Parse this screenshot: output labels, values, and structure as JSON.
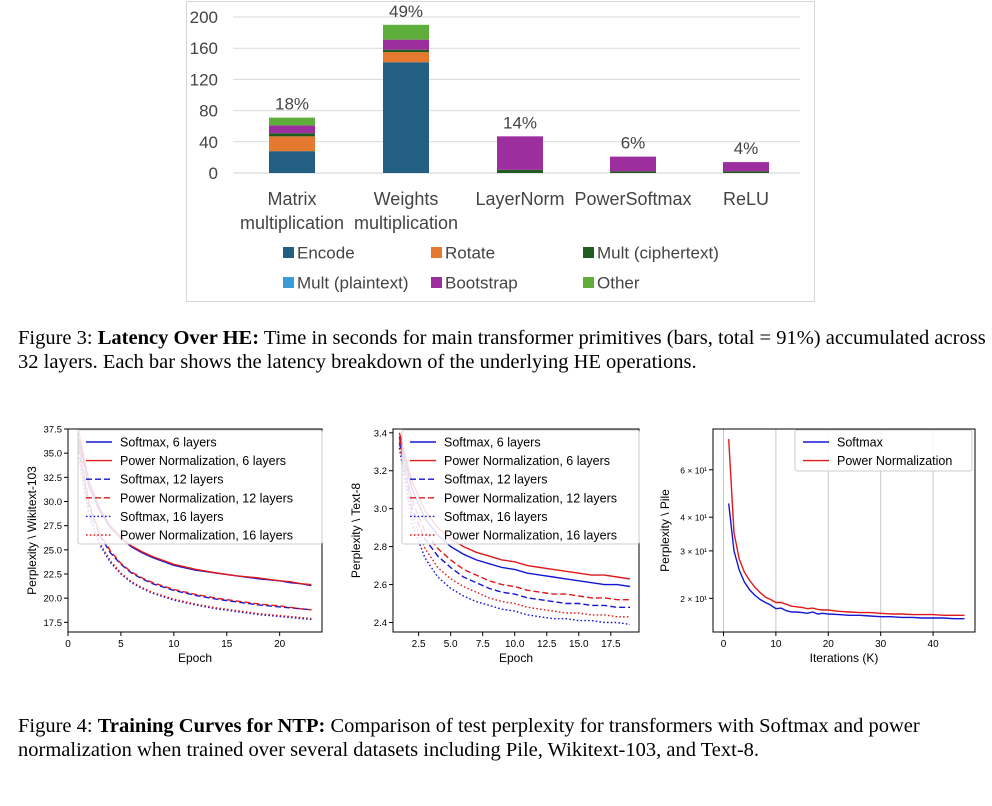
{
  "figure3": {
    "caption_label": "Figure 3:",
    "caption_bold": "Latency Over HE:",
    "caption_text": "Time in seconds for main transformer primitives (bars, total = 91%) accumulated across 32 layers. Each bar shows the latency breakdown of the underlying HE operations."
  },
  "figure4": {
    "caption_label": "Figure 4:",
    "caption_bold": "Training Curves for NTP:",
    "caption_text": "Comparison of test perplexity for transformers with Softmax and power normalization when trained over several datasets including Pile, Wikitext-103, and Text-8."
  },
  "colors": {
    "encode": "#235f83",
    "rotate": "#e5792f",
    "mult_ciphertext": "#1f5e20",
    "mult_plaintext": "#3b9ad8",
    "bootstrap": "#9c2f9d",
    "other": "#5fae3b",
    "softmax": "#1515d6",
    "power": "#e0191b",
    "grid": "#d9d9d9"
  },
  "chart_data": [
    {
      "type": "bar",
      "stacked": true,
      "title": "",
      "categories": [
        [
          "Matrix",
          "multiplication"
        ],
        [
          "Weights",
          "multiplication"
        ],
        [
          "LayerNorm"
        ],
        [
          "PowerSoftmax"
        ],
        [
          "ReLU"
        ]
      ],
      "bar_labels": [
        "18%",
        "49%",
        "14%",
        "6%",
        "4%"
      ],
      "ylim": [
        0,
        200
      ],
      "yticks": [
        0,
        40,
        80,
        120,
        160,
        200
      ],
      "series": [
        {
          "name": "Encode",
          "color_key": "encode",
          "values": [
            28,
            142,
            0,
            0,
            0
          ]
        },
        {
          "name": "Rotate",
          "color_key": "rotate",
          "values": [
            19,
            13,
            0,
            0,
            0
          ]
        },
        {
          "name": "Mult (ciphertext)",
          "color_key": "mult_ciphertext",
          "values": [
            4,
            3,
            4,
            2,
            2
          ]
        },
        {
          "name": "Mult (plaintext)",
          "color_key": "mult_plaintext",
          "values": [
            0,
            0,
            0,
            0,
            0
          ]
        },
        {
          "name": "Bootstrap",
          "color_key": "bootstrap",
          "values": [
            10,
            13,
            43,
            19,
            12
          ]
        },
        {
          "name": "Other",
          "color_key": "other",
          "values": [
            10,
            19,
            0,
            0,
            0
          ]
        }
      ],
      "legend_order": [
        "Encode",
        "Rotate",
        "Mult (ciphertext)",
        "Mult (plaintext)",
        "Bootstrap",
        "Other"
      ]
    },
    {
      "type": "line",
      "xlabel": "Epoch",
      "ylabel": "Perplexity \\ Wikitext-103",
      "xlim": [
        0,
        24
      ],
      "ylim": [
        16.5,
        37.5
      ],
      "xticks": [
        0,
        5,
        10,
        15,
        20
      ],
      "yticks": [
        17.5,
        20.0,
        22.5,
        25.0,
        27.5,
        30.0,
        32.5,
        35.0,
        37.5
      ],
      "ytick_labels": [
        "17.5",
        "20.0",
        "22.5",
        "25.0",
        "27.5",
        "30.0",
        "32.5",
        "35.0",
        "37.5"
      ],
      "legend_position": "top-right",
      "series": [
        {
          "name": "Softmax, 6 layers",
          "color_key": "softmax",
          "style": "solid",
          "x": [
            1,
            2,
            3,
            4,
            5,
            6,
            7,
            8,
            10,
            12,
            14,
            16,
            18,
            20,
            21,
            22,
            23
          ],
          "y": [
            36.5,
            31.5,
            29.0,
            27.3,
            26.2,
            25.3,
            24.7,
            24.2,
            23.4,
            22.9,
            22.6,
            22.3,
            22.0,
            21.8,
            21.6,
            21.5,
            21.3
          ]
        },
        {
          "name": "Power Normalization, 6 layers",
          "color_key": "power",
          "style": "solid",
          "x": [
            1,
            2,
            3,
            4,
            5,
            6,
            7,
            8,
            10,
            12,
            14,
            16,
            18,
            20,
            21,
            22,
            23
          ],
          "y": [
            37.2,
            32.0,
            29.3,
            27.5,
            26.3,
            25.4,
            24.8,
            24.3,
            23.5,
            23.0,
            22.6,
            22.3,
            22.1,
            21.8,
            21.7,
            21.5,
            21.4
          ]
        },
        {
          "name": "Softmax, 12 layers",
          "color_key": "softmax",
          "style": "dashed",
          "x": [
            1,
            2,
            3,
            4,
            5,
            6,
            7,
            8,
            10,
            12,
            14,
            16,
            18,
            20,
            22,
            23
          ],
          "y": [
            35.5,
            29.5,
            26.5,
            24.7,
            23.5,
            22.6,
            22.0,
            21.5,
            20.8,
            20.3,
            19.9,
            19.6,
            19.3,
            19.1,
            18.9,
            18.8
          ]
        },
        {
          "name": "Power Normalization, 12 layers",
          "color_key": "power",
          "style": "dashed",
          "x": [
            1,
            2,
            3,
            4,
            5,
            6,
            7,
            8,
            10,
            12,
            14,
            16,
            18,
            20,
            22,
            23
          ],
          "y": [
            36.0,
            29.8,
            26.7,
            24.9,
            23.6,
            22.7,
            22.1,
            21.6,
            20.9,
            20.4,
            20.0,
            19.7,
            19.4,
            19.2,
            18.9,
            18.8
          ]
        },
        {
          "name": "Softmax, 16 layers",
          "color_key": "softmax",
          "style": "dotted",
          "x": [
            1,
            2,
            3,
            4,
            5,
            6,
            7,
            8,
            10,
            12,
            14,
            16,
            18,
            20,
            22,
            23
          ],
          "y": [
            34.5,
            28.5,
            25.5,
            23.7,
            22.5,
            21.6,
            21.0,
            20.5,
            19.8,
            19.3,
            18.9,
            18.6,
            18.3,
            18.1,
            17.9,
            17.8
          ]
        },
        {
          "name": "Power Normalization, 16 layers",
          "color_key": "power",
          "style": "dotted",
          "x": [
            1,
            2,
            3,
            4,
            5,
            6,
            7,
            8,
            10,
            12,
            14,
            16,
            18,
            20,
            22,
            23
          ],
          "y": [
            35.0,
            28.8,
            25.7,
            23.9,
            22.6,
            21.7,
            21.1,
            20.6,
            19.9,
            19.4,
            19.0,
            18.7,
            18.4,
            18.2,
            18.0,
            17.9
          ]
        }
      ]
    },
    {
      "type": "line",
      "xlabel": "Epoch",
      "ylabel": "Perplexity \\ Text-8",
      "xlim": [
        0.5,
        19.7
      ],
      "ylim": [
        2.35,
        3.42
      ],
      "xticks": [
        2.5,
        5.0,
        7.5,
        10.0,
        12.5,
        15.0,
        17.5
      ],
      "xtick_labels": [
        "2.5",
        "5.0",
        "7.5",
        "10.0",
        "12.5",
        "15.0",
        "17.5"
      ],
      "yticks": [
        2.4,
        2.6,
        2.8,
        3.0,
        3.2,
        3.4
      ],
      "ytick_labels": [
        "2.4",
        "2.6",
        "2.8",
        "3.0",
        "3.2",
        "3.4"
      ],
      "legend_position": "top-right",
      "series": [
        {
          "name": "Softmax, 6 layers",
          "color_key": "softmax",
          "style": "solid",
          "x": [
            1,
            2,
            3,
            4,
            5,
            6,
            7,
            8,
            9,
            10,
            11,
            12,
            13,
            14,
            15,
            16,
            17,
            18,
            19
          ],
          "y": [
            3.38,
            3.1,
            2.95,
            2.86,
            2.8,
            2.76,
            2.73,
            2.71,
            2.69,
            2.68,
            2.66,
            2.65,
            2.64,
            2.63,
            2.62,
            2.61,
            2.6,
            2.6,
            2.59
          ]
        },
        {
          "name": "Power Normalization, 6 layers",
          "color_key": "power",
          "style": "solid",
          "x": [
            1,
            2,
            3,
            4,
            5,
            6,
            7,
            8,
            9,
            10,
            11,
            12,
            13,
            14,
            15,
            16,
            17,
            18,
            19
          ],
          "y": [
            3.4,
            3.14,
            2.99,
            2.9,
            2.84,
            2.8,
            2.77,
            2.75,
            2.73,
            2.72,
            2.7,
            2.69,
            2.68,
            2.67,
            2.66,
            2.65,
            2.65,
            2.64,
            2.63
          ]
        },
        {
          "name": "Softmax, 12 layers",
          "color_key": "softmax",
          "style": "dashed",
          "x": [
            1,
            2,
            3,
            4,
            5,
            6,
            7,
            8,
            9,
            10,
            11,
            12,
            13,
            14,
            15,
            16,
            17,
            18,
            19
          ],
          "y": [
            3.35,
            3.0,
            2.84,
            2.75,
            2.69,
            2.64,
            2.61,
            2.58,
            2.56,
            2.55,
            2.53,
            2.52,
            2.51,
            2.5,
            2.5,
            2.49,
            2.49,
            2.48,
            2.48
          ]
        },
        {
          "name": "Power Normalization, 12 layers",
          "color_key": "power",
          "style": "dashed",
          "x": [
            1,
            2,
            3,
            4,
            5,
            6,
            7,
            8,
            9,
            10,
            11,
            12,
            13,
            14,
            15,
            16,
            17,
            18,
            19
          ],
          "y": [
            3.37,
            3.04,
            2.88,
            2.79,
            2.73,
            2.68,
            2.65,
            2.62,
            2.6,
            2.59,
            2.57,
            2.56,
            2.55,
            2.55,
            2.54,
            2.53,
            2.53,
            2.52,
            2.52
          ]
        },
        {
          "name": "Softmax, 16 layers",
          "color_key": "softmax",
          "style": "dotted",
          "x": [
            1,
            2,
            3,
            4,
            5,
            6,
            7,
            8,
            9,
            10,
            11,
            12,
            13,
            14,
            15,
            16,
            17,
            18,
            19
          ],
          "y": [
            3.32,
            2.92,
            2.74,
            2.64,
            2.58,
            2.54,
            2.51,
            2.49,
            2.47,
            2.46,
            2.44,
            2.43,
            2.42,
            2.42,
            2.41,
            2.41,
            2.4,
            2.4,
            2.39
          ]
        },
        {
          "name": "Power Normalization, 16 layers",
          "color_key": "power",
          "style": "dotted",
          "x": [
            1,
            2,
            3,
            4,
            5,
            6,
            7,
            8,
            9,
            10,
            11,
            12,
            13,
            14,
            15,
            16,
            17,
            18,
            19
          ],
          "y": [
            3.34,
            2.96,
            2.79,
            2.69,
            2.63,
            2.59,
            2.56,
            2.53,
            2.51,
            2.5,
            2.48,
            2.47,
            2.46,
            2.45,
            2.45,
            2.44,
            2.44,
            2.43,
            2.43
          ]
        }
      ]
    },
    {
      "type": "line",
      "yscale": "log",
      "xlabel": "Iterations (K)",
      "ylabel": "Perplexity \\ Pile",
      "xlim": [
        -2,
        48
      ],
      "ylim": [
        15,
        85
      ],
      "xticks": [
        0,
        10,
        20,
        30,
        40
      ],
      "yticks": [
        20,
        30,
        40,
        60
      ],
      "ytick_labels": [
        "2 × 10¹",
        "3 × 10¹",
        "4 × 10¹",
        "6 × 10¹"
      ],
      "grid": true,
      "legend_position": "top-right",
      "series": [
        {
          "name": "Softmax",
          "color_key": "softmax",
          "style": "solid",
          "x": [
            1,
            2,
            3,
            4,
            5,
            6,
            7,
            8,
            9,
            10,
            11,
            12,
            13,
            14,
            15,
            16,
            17,
            18,
            19,
            20,
            22,
            24,
            26,
            28,
            30,
            32,
            34,
            36,
            38,
            40,
            42,
            44,
            46
          ],
          "y": [
            45,
            30,
            25.5,
            23,
            21.5,
            20.5,
            19.8,
            19.3,
            18.9,
            18.3,
            18.4,
            18.0,
            17.8,
            17.8,
            17.7,
            17.6,
            17.8,
            17.5,
            17.6,
            17.5,
            17.4,
            17.3,
            17.3,
            17.2,
            17.1,
            17.1,
            17.0,
            17.0,
            16.9,
            16.9,
            16.9,
            16.8,
            16.8
          ]
        },
        {
          "name": "Power Normalization",
          "color_key": "power",
          "style": "solid",
          "x": [
            1,
            2,
            3,
            4,
            5,
            6,
            7,
            8,
            9,
            10,
            11,
            12,
            13,
            14,
            15,
            16,
            17,
            18,
            19,
            20,
            22,
            24,
            26,
            28,
            30,
            32,
            34,
            36,
            38,
            40,
            42,
            44,
            46
          ],
          "y": [
            78,
            35,
            28,
            25,
            23.3,
            22,
            21,
            20.2,
            19.8,
            19.3,
            19.3,
            19.0,
            18.7,
            18.6,
            18.5,
            18.3,
            18.4,
            18.2,
            18.1,
            18.1,
            17.9,
            17.8,
            17.7,
            17.7,
            17.6,
            17.5,
            17.5,
            17.4,
            17.4,
            17.4,
            17.3,
            17.3,
            17.3
          ]
        }
      ]
    }
  ]
}
